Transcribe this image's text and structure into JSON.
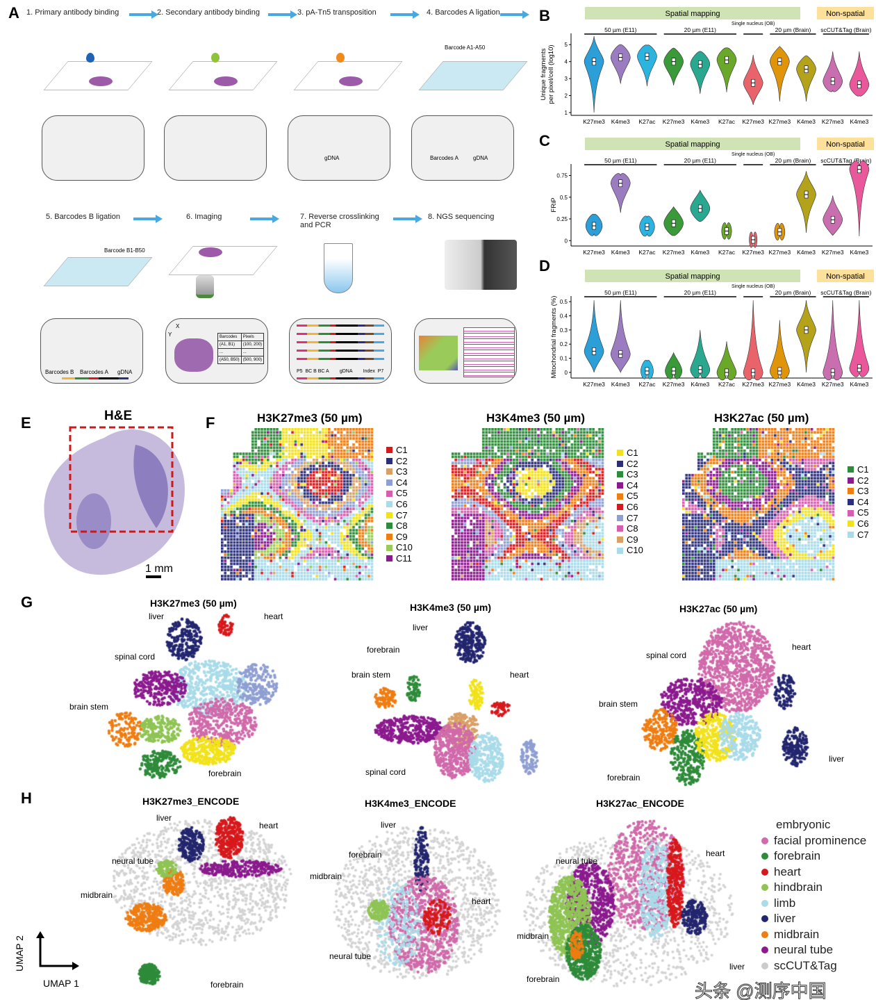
{
  "panel_labels": [
    "A",
    "B",
    "C",
    "D",
    "E",
    "F",
    "G",
    "H"
  ],
  "panel_a": {
    "steps": [
      "1. Primary antibody binding",
      "2. Secondary antibody binding",
      "3. pA-Tn5 transposition",
      "4. Barcodes A ligation",
      "5. Barcodes B ligation",
      "6. Imaging",
      "7. Reverse crosslinking and PCR",
      "8. NGS sequencing"
    ],
    "barcode_a_label": "Barcode A1-A50",
    "barcode_b_label": "Barcode B1-B50",
    "gdna": "gDNA",
    "barcodes_a": "Barcodes A",
    "barcodes_b": "Barcodes B",
    "axis_x": "X",
    "axis_y": "Y",
    "table_headers": [
      "Barcodes",
      "Pixels"
    ],
    "table_rows": [
      [
        "(A1, B1)",
        "(100, 200)"
      ],
      [
        "...",
        "..."
      ],
      [
        "(A50, B50)",
        "(500, 900)"
      ]
    ],
    "pcr_labels": "P5  BC B BC A        gDNA        Index  P7"
  },
  "group_header": {
    "spatial": "Spatial mapping",
    "nonspatial": "Non-spatial",
    "groups": [
      "50 µm (E11)",
      "20 µm (E11)",
      "Single nucleus (OB)",
      "20 µm (Brain)",
      "scCUT&Tag (Brain)"
    ]
  },
  "chart_data": [
    {
      "type": "violin",
      "panel": "B",
      "ylabel": "Unique fragments per pixel/cell (log10)",
      "ylim": [
        1,
        5.5
      ],
      "yticks": [
        1,
        2,
        3,
        4,
        5
      ],
      "categories": [
        "K27me3",
        "K4me3",
        "K27ac",
        "K27me3",
        "K4me3",
        "K27ac",
        "K27me3",
        "K27me3",
        "K4me3",
        "K27me3",
        "K4me3"
      ],
      "medians": [
        4.0,
        4.25,
        4.3,
        4.0,
        3.85,
        4.1,
        2.75,
        4.0,
        3.55,
        2.85,
        2.65
      ],
      "min": [
        1.0,
        2.7,
        2.55,
        2.6,
        2.1,
        2.2,
        1.45,
        1.65,
        1.65,
        2.3,
        2.0
      ],
      "max": [
        5.5,
        5.0,
        4.95,
        4.8,
        4.6,
        4.8,
        4.4,
        4.9,
        4.35,
        4.6,
        4.6
      ],
      "colors": [
        "#2d9fd8",
        "#9b7cc0",
        "#2bb4e0",
        "#3a9a3a",
        "#2aa78f",
        "#6aa82a",
        "#e9646a",
        "#e0940a",
        "#b4a21a",
        "#c96fb0",
        "#e9589a"
      ]
    },
    {
      "type": "violin",
      "panel": "C",
      "ylabel": "FRiP",
      "ylim": [
        -0.03,
        0.85
      ],
      "yticks": [
        0,
        0.25,
        0.5,
        0.75
      ],
      "categories": [
        "K27me3",
        "K4me3",
        "K27ac",
        "K27me3",
        "K4me3",
        "K27ac",
        "K27me3",
        "K27me3",
        "K4me3",
        "K27me3",
        "K4me3"
      ],
      "medians": [
        0.17,
        0.66,
        0.16,
        0.2,
        0.37,
        0.11,
        0.01,
        0.1,
        0.53,
        0.24,
        0.82
      ],
      "min": [
        0.08,
        0.32,
        0.08,
        0.06,
        0.22,
        0.08,
        0.0,
        0.07,
        0.09,
        0.06,
        0.05
      ],
      "max": [
        0.3,
        0.75,
        0.27,
        0.39,
        0.58,
        0.15,
        0.02,
        0.15,
        0.8,
        0.52,
        0.86
      ],
      "colors": [
        "#2d9fd8",
        "#9b7cc0",
        "#2bb4e0",
        "#3a9a3a",
        "#2aa78f",
        "#6aa82a",
        "#e9646a",
        "#e0940a",
        "#b4a21a",
        "#c96fb0",
        "#e9589a"
      ]
    },
    {
      "type": "violin",
      "panel": "D",
      "ylabel": "Mitochondrial fragments (%)",
      "ylim": [
        -0.02,
        0.52
      ],
      "yticks": [
        0,
        0.1,
        0.2,
        0.3,
        0.4,
        0.5
      ],
      "categories": [
        "K27me3",
        "K4me3",
        "K27ac",
        "K27me3",
        "K4me3",
        "K27ac",
        "K27me3",
        "K27me3",
        "K4me3",
        "K27me3",
        "K4me3"
      ],
      "medians": [
        0.15,
        0.13,
        0.01,
        0.01,
        0.02,
        0.0,
        0.0,
        0.01,
        0.3,
        0.0,
        0.03
      ],
      "min": [
        0,
        0,
        0,
        0,
        0,
        0,
        0,
        0,
        0,
        0,
        0
      ],
      "max": [
        0.51,
        0.51,
        0.08,
        0.14,
        0.3,
        0.22,
        0.51,
        0.37,
        0.51,
        0.51,
        0.51
      ],
      "colors": [
        "#2d9fd8",
        "#9b7cc0",
        "#2bb4e0",
        "#3a9a3a",
        "#2aa78f",
        "#6aa82a",
        "#e9646a",
        "#e0940a",
        "#b4a21a",
        "#c96fb0",
        "#e9589a"
      ]
    }
  ],
  "panel_e": {
    "title": "H&E",
    "scale": "1 mm"
  },
  "panel_f": [
    {
      "title": "H3K27me3 (50 µm)",
      "clusters": [
        "C1",
        "C2",
        "C3",
        "C4",
        "C5",
        "C6",
        "C7",
        "C8",
        "C9",
        "C10",
        "C11"
      ],
      "colors": [
        "#d7191c",
        "#2b2f7a",
        "#d9a066",
        "#8f9fd2",
        "#d45fae",
        "#a9dbe9",
        "#f2e21a",
        "#2e8b3a",
        "#ee7d12",
        "#9acb5a",
        "#8b1a8e"
      ]
    },
    {
      "title": "H3K4me3 (50 µm)",
      "clusters": [
        "C1",
        "C2",
        "C3",
        "C4",
        "C5",
        "C6",
        "C7",
        "C8",
        "C9",
        "C10"
      ],
      "colors": [
        "#f2e21a",
        "#2b2f7a",
        "#2e8b3a",
        "#8b1a8e",
        "#ee7d12",
        "#d7191c",
        "#8f9fd2",
        "#d45fae",
        "#d9a066",
        "#a9dbe9"
      ]
    },
    {
      "title": "H3K27ac (50 µm)",
      "clusters": [
        "C1",
        "C2",
        "C3",
        "C4",
        "C5",
        "C6",
        "C7"
      ],
      "colors": [
        "#2e8b3a",
        "#8b1a8e",
        "#ee7d12",
        "#2b2f7a",
        "#d45fae",
        "#f2e21a",
        "#a9dbe9"
      ]
    }
  ],
  "panel_g": [
    {
      "title": "H3K27me3 (50 µm)",
      "labels": [
        "liver",
        "heart",
        "spinal cord",
        "brain stem",
        "forebrain"
      ]
    },
    {
      "title": "H3K4me3 (50 µm)",
      "labels": [
        "liver",
        "forebrain",
        "brain stem",
        "heart",
        "spinal cord"
      ]
    },
    {
      "title": "H3K27ac (50 µm)",
      "labels": [
        "spinal cord",
        "heart",
        "brain stem",
        "liver",
        "forebrain"
      ]
    }
  ],
  "panel_h": [
    {
      "title": "H3K27me3_ENCODE",
      "labels": [
        "liver",
        "heart",
        "neural tube",
        "midbrain",
        "forebrain"
      ]
    },
    {
      "title": "H3K4me3_ENCODE",
      "labels": [
        "liver",
        "forebrain",
        "midbrain",
        "heart",
        "neural tube"
      ]
    },
    {
      "title": "H3K27ac_ENCODE",
      "labels": [
        "heart",
        "neural tube",
        "liver",
        "midbrain",
        "forebrain"
      ]
    }
  ],
  "umap": {
    "x": "UMAP 1",
    "y": "UMAP 2"
  },
  "legend_h": [
    {
      "label": "embryonic facial prominence",
      "color": "#d06aaa"
    },
    {
      "label": "forebrain",
      "color": "#2e8b3a"
    },
    {
      "label": "heart",
      "color": "#d7191c"
    },
    {
      "label": "hindbrain",
      "color": "#8fc454"
    },
    {
      "label": "limb",
      "color": "#a9dbe9"
    },
    {
      "label": "liver",
      "color": "#23266e"
    },
    {
      "label": "midbrain",
      "color": "#ee7d12"
    },
    {
      "label": "neural tube",
      "color": "#8b1a8e"
    },
    {
      "label": "scCUT&Tag",
      "color": "#cccccc"
    }
  ],
  "watermark": "头条 @测序中国"
}
